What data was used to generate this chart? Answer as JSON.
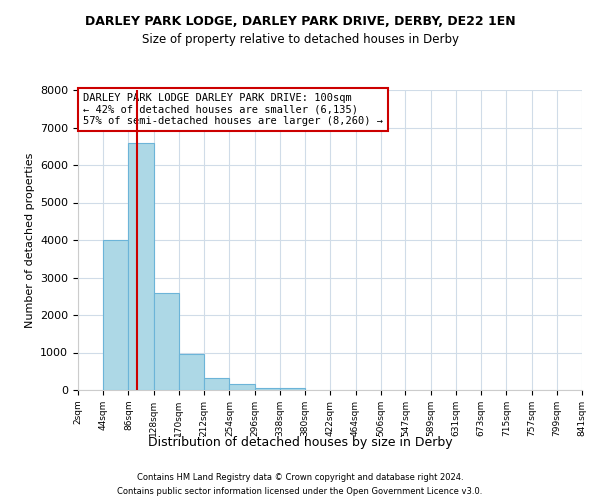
{
  "title": "DARLEY PARK LODGE, DARLEY PARK DRIVE, DERBY, DE22 1EN",
  "subtitle": "Size of property relative to detached houses in Derby",
  "xlabel": "Distribution of detached houses by size in Derby",
  "ylabel": "Number of detached properties",
  "bin_edges": [
    2,
    44,
    86,
    128,
    170,
    212,
    254,
    296,
    338,
    380,
    422,
    464,
    506,
    547,
    589,
    631,
    673,
    715,
    757,
    799,
    841
  ],
  "bar_heights": [
    0,
    4000,
    6600,
    2600,
    950,
    325,
    150,
    50,
    50,
    0,
    0,
    0,
    0,
    0,
    0,
    0,
    0,
    0,
    0,
    0
  ],
  "bar_color": "#add8e6",
  "bar_edge_color": "#6cb4d8",
  "property_size": 100,
  "property_line_color": "#cc0000",
  "ylim": [
    0,
    8000
  ],
  "yticks": [
    0,
    1000,
    2000,
    3000,
    4000,
    5000,
    6000,
    7000,
    8000
  ],
  "annotation_text": "DARLEY PARK LODGE DARLEY PARK DRIVE: 100sqm\n← 42% of detached houses are smaller (6,135)\n57% of semi-detached houses are larger (8,260) →",
  "annotation_box_color": "#cc0000",
  "footnote1": "Contains HM Land Registry data © Crown copyright and database right 2024.",
  "footnote2": "Contains public sector information licensed under the Open Government Licence v3.0.",
  "background_color": "#ffffff",
  "grid_color": "#d0dce8",
  "tick_labels": [
    "2sqm",
    "44sqm",
    "86sqm",
    "128sqm",
    "170sqm",
    "212sqm",
    "254sqm",
    "296sqm",
    "338sqm",
    "380sqm",
    "422sqm",
    "464sqm",
    "506sqm",
    "547sqm",
    "589sqm",
    "631sqm",
    "673sqm",
    "715sqm",
    "757sqm",
    "799sqm",
    "841sqm"
  ]
}
